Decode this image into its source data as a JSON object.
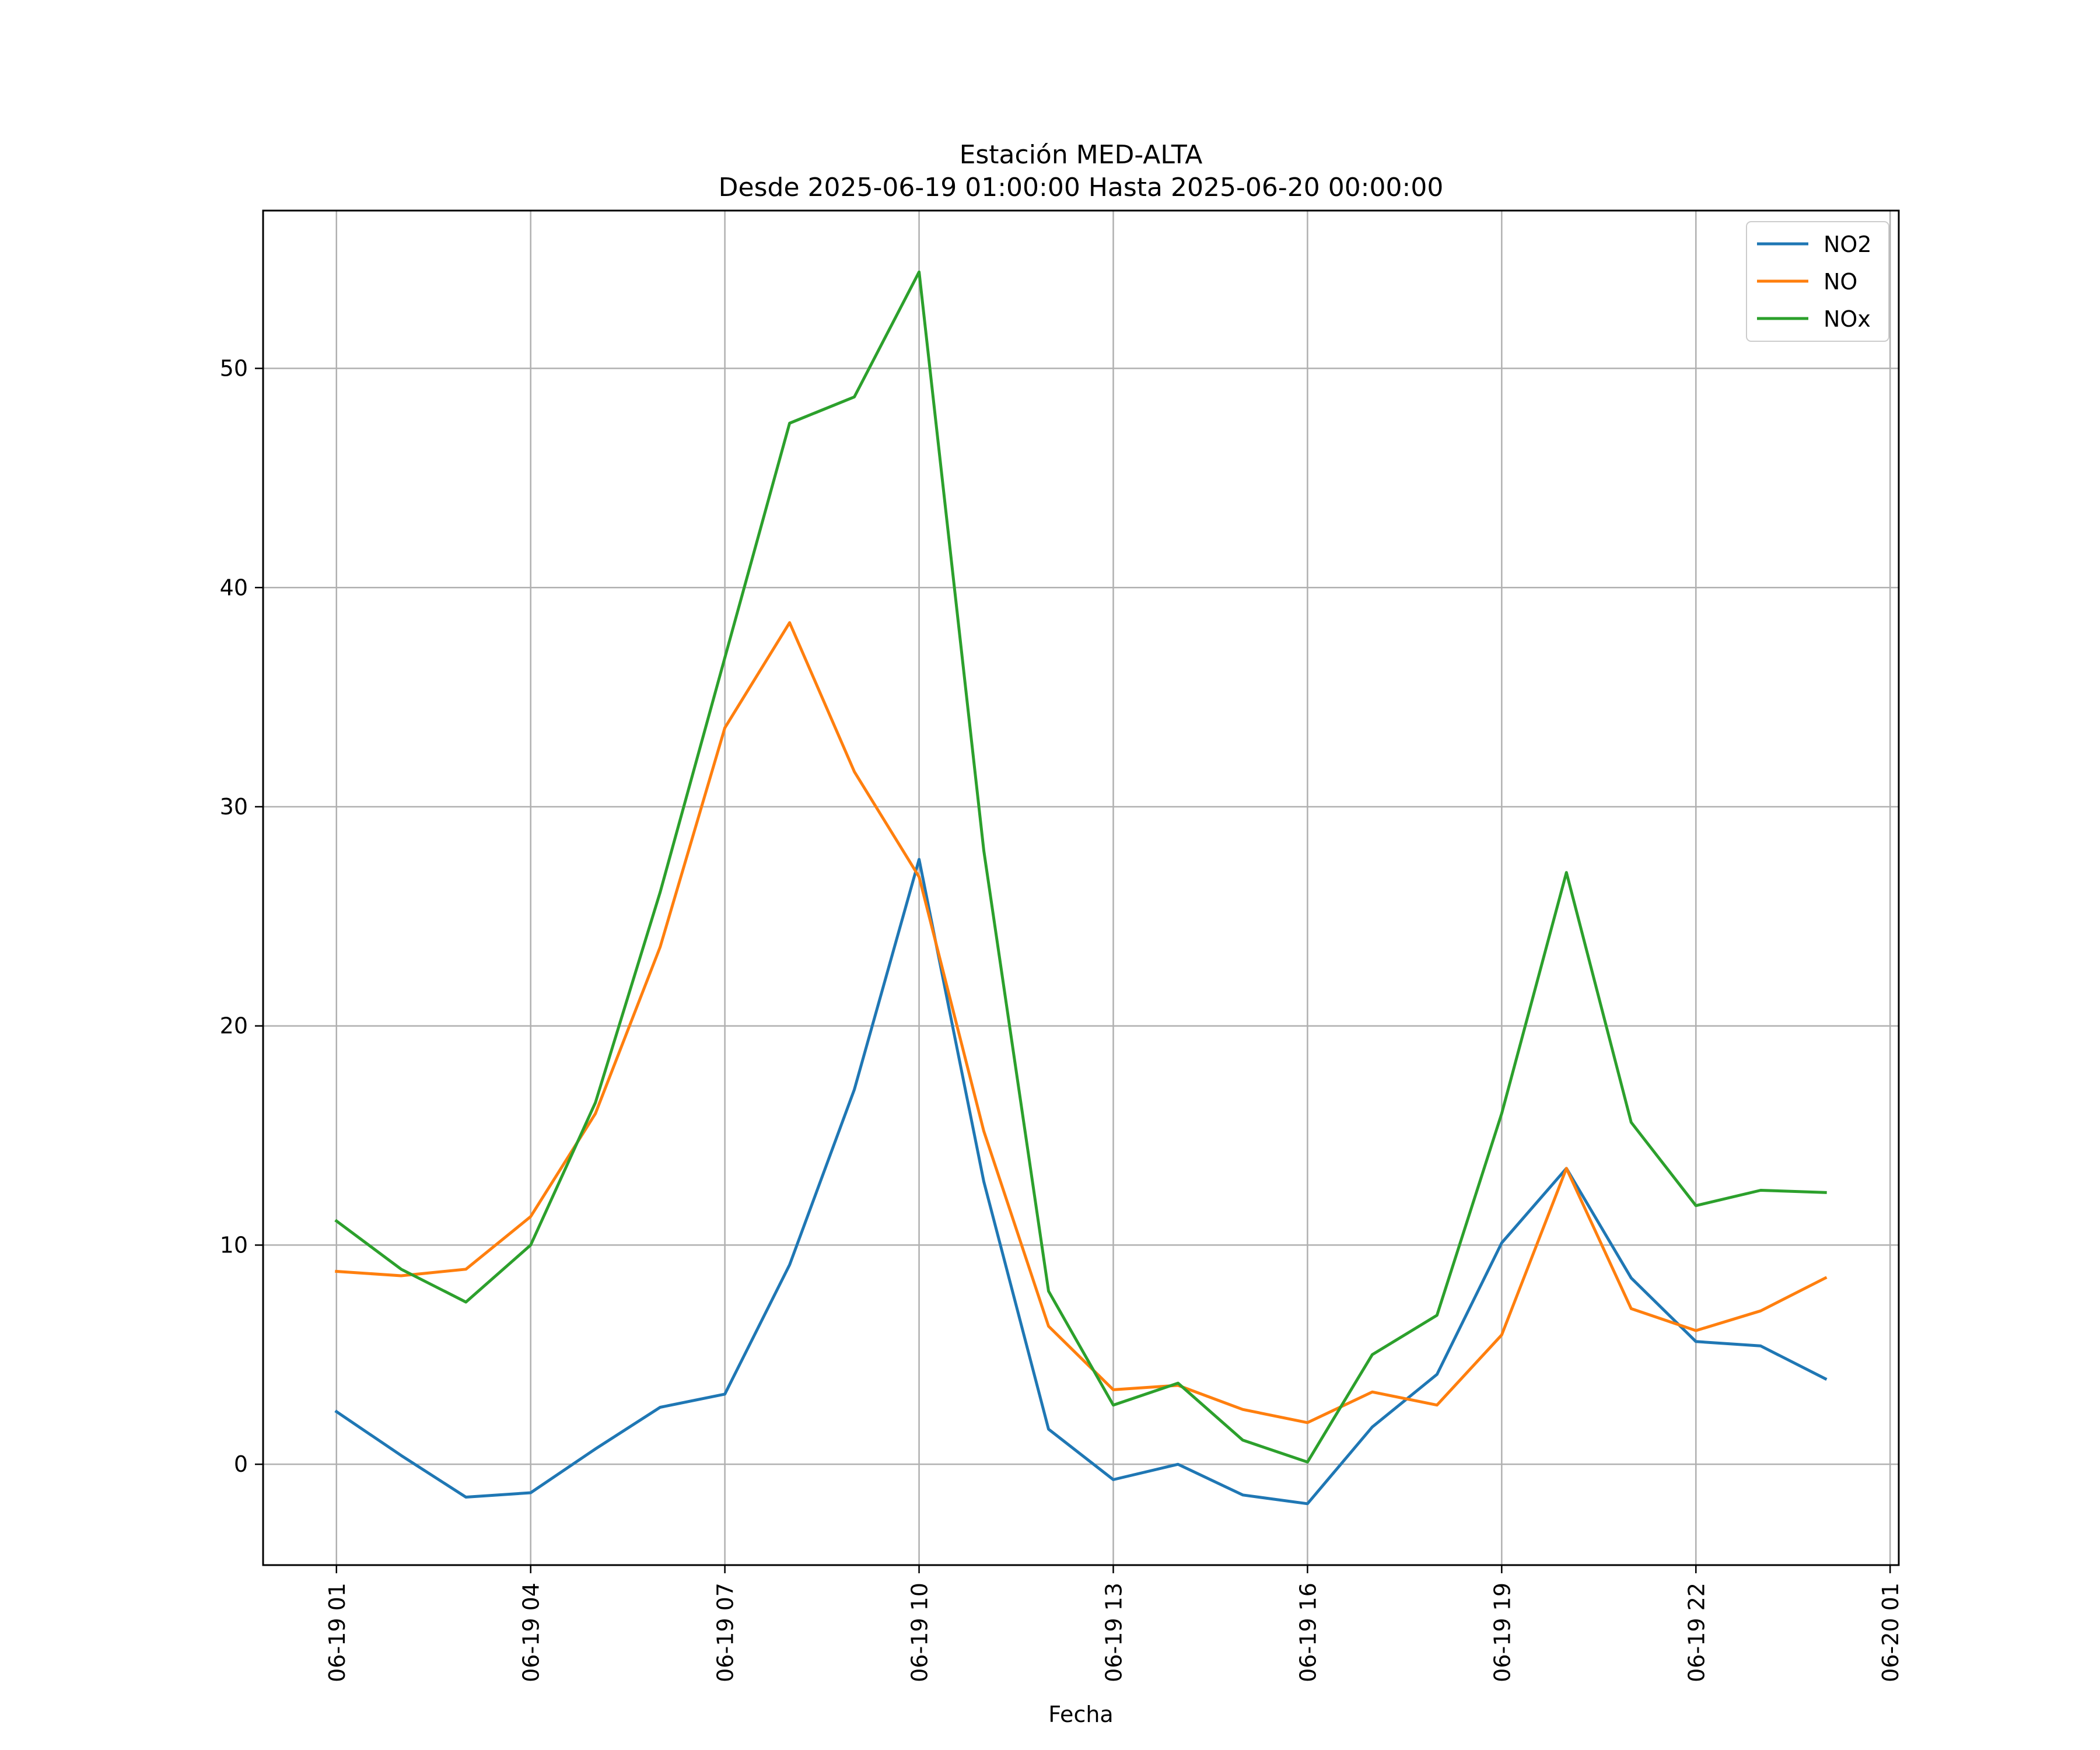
{
  "chart_data": {
    "type": "line",
    "title": "Estación MED-ALTA",
    "subtitle": "Desde 2025-06-19 01:00:00 Hasta 2025-06-20 00:00:00",
    "xlabel": "Fecha",
    "ylabel": "",
    "x": [
      "2025-06-19 01:00",
      "2025-06-19 02:00",
      "2025-06-19 03:00",
      "2025-06-19 04:00",
      "2025-06-19 05:00",
      "2025-06-19 06:00",
      "2025-06-19 07:00",
      "2025-06-19 08:00",
      "2025-06-19 09:00",
      "2025-06-19 10:00",
      "2025-06-19 11:00",
      "2025-06-19 12:00",
      "2025-06-19 13:00",
      "2025-06-19 14:00",
      "2025-06-19 15:00",
      "2025-06-19 16:00",
      "2025-06-19 17:00",
      "2025-06-19 18:00",
      "2025-06-19 19:00",
      "2025-06-19 20:00",
      "2025-06-19 21:00",
      "2025-06-19 22:00",
      "2025-06-19 23:00",
      "2025-06-20 00:00"
    ],
    "xlim": [
      "2025-06-18 23:52",
      "2025-06-20 01:08"
    ],
    "xticks": [
      "2025-06-19 01:00",
      "2025-06-19 04:00",
      "2025-06-19 07:00",
      "2025-06-19 10:00",
      "2025-06-19 13:00",
      "2025-06-19 16:00",
      "2025-06-19 19:00",
      "2025-06-19 22:00",
      "2025-06-20 01:00"
    ],
    "xtick_labels": [
      "06-19 01",
      "06-19 04",
      "06-19 07",
      "06-19 10",
      "06-19 13",
      "06-19 16",
      "06-19 19",
      "06-19 22",
      "06-20 01"
    ],
    "yticks": [
      0,
      10,
      20,
      30,
      40,
      50
    ],
    "ylim": [
      -4.6,
      57.2
    ],
    "grid": true,
    "legend_position": "top-right",
    "series": [
      {
        "name": "NO2",
        "color": "#1f77b4",
        "values": [
          2.4,
          0.4,
          -1.5,
          -1.3,
          0.7,
          2.6,
          3.2,
          9.1,
          17.1,
          27.6,
          12.9,
          1.6,
          -0.7,
          0.0,
          -1.4,
          -1.8,
          1.7,
          4.1,
          10.1,
          13.5,
          8.5,
          5.6,
          5.4,
          3.9
        ]
      },
      {
        "name": "NO",
        "color": "#ff7f0e",
        "values": [
          8.8,
          8.6,
          8.9,
          11.3,
          16.0,
          23.6,
          33.6,
          38.4,
          31.6,
          26.8,
          15.2,
          6.3,
          3.4,
          3.6,
          2.5,
          1.9,
          3.3,
          2.7,
          5.9,
          13.5,
          7.1,
          6.1,
          7.0,
          8.5
        ]
      },
      {
        "name": "NOx",
        "color": "#2ca02c",
        "values": [
          11.1,
          8.9,
          7.4,
          10.0,
          16.5,
          26.1,
          36.8,
          47.5,
          48.7,
          54.4,
          28.0,
          7.9,
          2.7,
          3.7,
          1.1,
          0.1,
          5.0,
          6.8,
          16.0,
          27.0,
          15.6,
          11.8,
          12.5,
          12.4
        ]
      }
    ]
  }
}
